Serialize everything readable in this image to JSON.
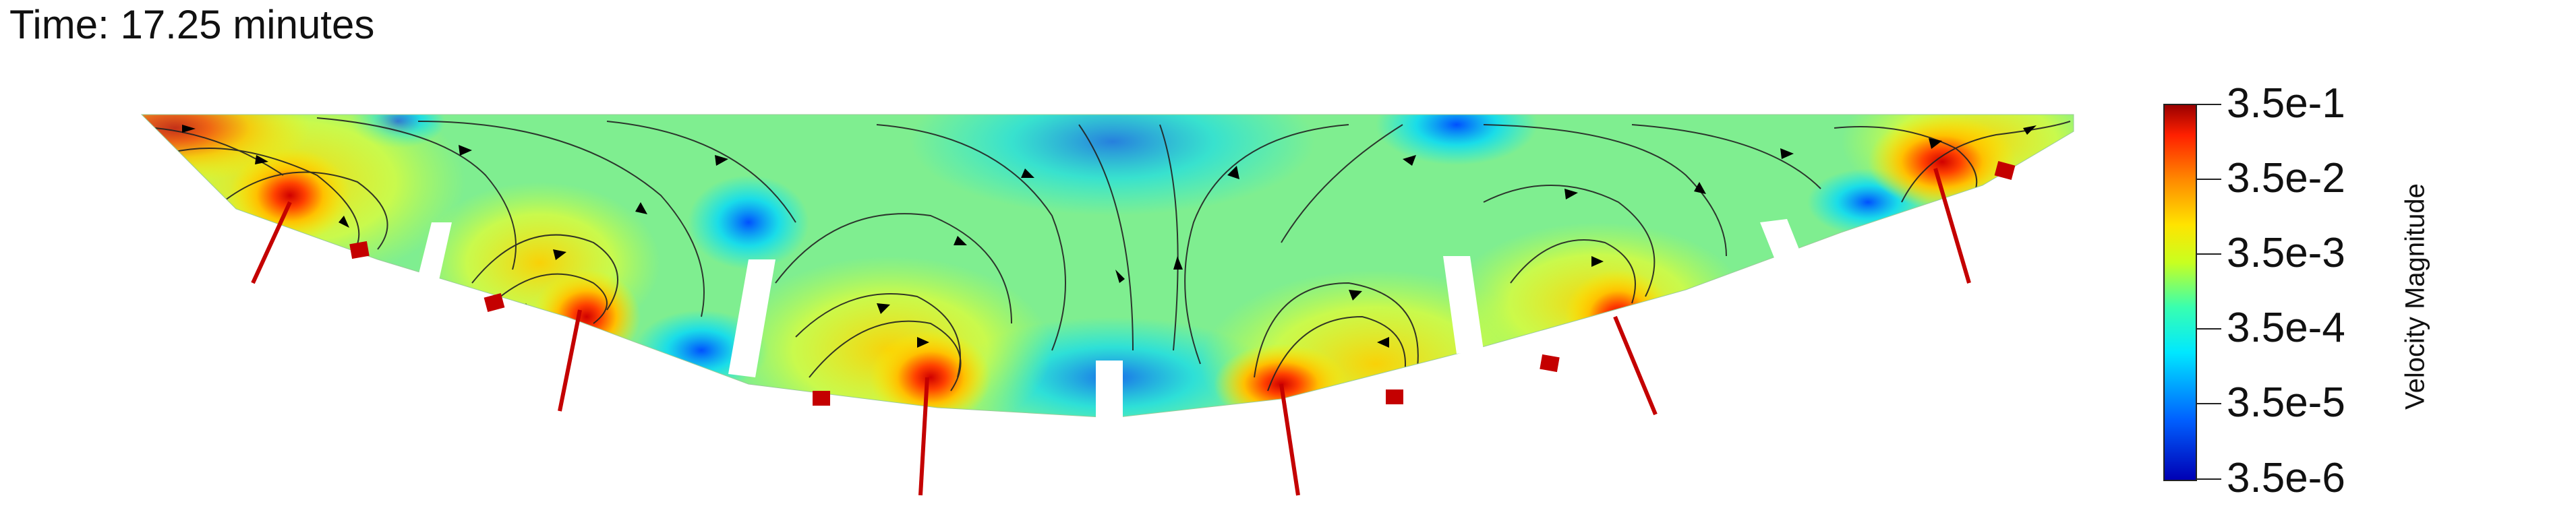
{
  "time_label": "Time: 17.25 minutes",
  "colorbar": {
    "title": "Velocity Magnitude",
    "scale": "log",
    "ticks": [
      "3.5e-1",
      "3.5e-2",
      "3.5e-3",
      "3.5e-4",
      "3.5e-5",
      "3.5e-6"
    ],
    "colors": [
      "#9a0000",
      "#ff2000",
      "#ff8a00",
      "#ffe400",
      "#c8ff20",
      "#38ffb0",
      "#00e8ff",
      "#0060ff",
      "#0000b4"
    ]
  },
  "field_colors": {
    "high": "#ff3a00",
    "mid": "#ffe600",
    "low": "#00d8ff",
    "base": "#8af070",
    "nozzle": "#c80000",
    "streamline": "#222222",
    "arrow": "#000000"
  }
}
